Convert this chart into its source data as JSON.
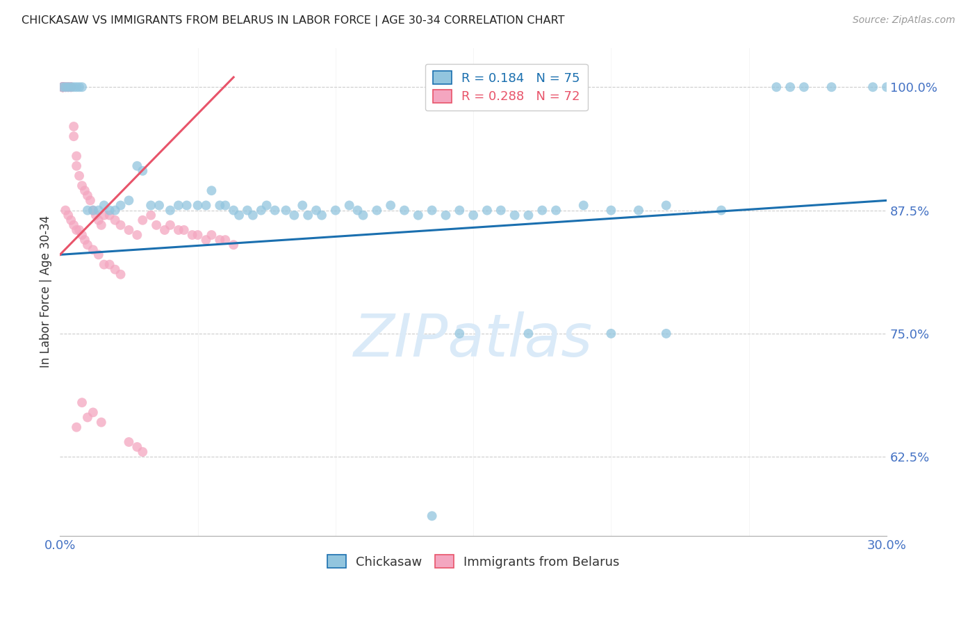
{
  "title": "CHICKASAW VS IMMIGRANTS FROM BELARUS IN LABOR FORCE | AGE 30-34 CORRELATION CHART",
  "source": "Source: ZipAtlas.com",
  "ylabel": "In Labor Force | Age 30-34",
  "xlim": [
    0.0,
    0.3
  ],
  "ylim": [
    0.545,
    1.04
  ],
  "yticks": [
    0.625,
    0.75,
    0.875,
    1.0
  ],
  "ytick_labels": [
    "62.5%",
    "75.0%",
    "87.5%",
    "100.0%"
  ],
  "legend_R1": "R = 0.184",
  "legend_N1": "N = 75",
  "legend_R2": "R = 0.288",
  "legend_N2": "N = 72",
  "blue_color": "#92c5de",
  "pink_color": "#f4a6c0",
  "blue_line_color": "#1a6faf",
  "pink_line_color": "#e8546a",
  "title_color": "#222222",
  "axis_label_color": "#333333",
  "tick_color": "#4472c4",
  "grid_color": "#cccccc",
  "watermark_color": "#daeaf8",
  "blue_x": [
    0.001,
    0.002,
    0.003,
    0.004,
    0.005,
    0.006,
    0.007,
    0.008,
    0.01,
    0.012,
    0.014,
    0.016,
    0.018,
    0.02,
    0.022,
    0.025,
    0.028,
    0.03,
    0.033,
    0.036,
    0.04,
    0.043,
    0.046,
    0.05,
    0.053,
    0.055,
    0.058,
    0.06,
    0.063,
    0.065,
    0.068,
    0.07,
    0.073,
    0.075,
    0.078,
    0.082,
    0.085,
    0.088,
    0.09,
    0.093,
    0.095,
    0.1,
    0.105,
    0.108,
    0.11,
    0.115,
    0.12,
    0.125,
    0.13,
    0.135,
    0.14,
    0.145,
    0.15,
    0.155,
    0.16,
    0.165,
    0.17,
    0.175,
    0.18,
    0.19,
    0.2,
    0.21,
    0.22,
    0.24,
    0.26,
    0.265,
    0.27,
    0.28,
    0.295,
    0.3,
    0.17,
    0.22,
    0.145,
    0.2,
    0.135
  ],
  "blue_y": [
    1.0,
    1.0,
    1.0,
    1.0,
    1.0,
    1.0,
    1.0,
    1.0,
    0.875,
    0.875,
    0.875,
    0.88,
    0.875,
    0.875,
    0.88,
    0.885,
    0.92,
    0.915,
    0.88,
    0.88,
    0.875,
    0.88,
    0.88,
    0.88,
    0.88,
    0.895,
    0.88,
    0.88,
    0.875,
    0.87,
    0.875,
    0.87,
    0.875,
    0.88,
    0.875,
    0.875,
    0.87,
    0.88,
    0.87,
    0.875,
    0.87,
    0.875,
    0.88,
    0.875,
    0.87,
    0.875,
    0.88,
    0.875,
    0.87,
    0.875,
    0.87,
    0.875,
    0.87,
    0.875,
    0.875,
    0.87,
    0.87,
    0.875,
    0.875,
    0.88,
    0.875,
    0.875,
    0.88,
    0.875,
    1.0,
    1.0,
    1.0,
    1.0,
    1.0,
    1.0,
    0.75,
    0.75,
    0.75,
    0.75,
    0.565
  ],
  "pink_x": [
    0.001,
    0.001,
    0.001,
    0.001,
    0.001,
    0.001,
    0.001,
    0.001,
    0.001,
    0.001,
    0.002,
    0.002,
    0.003,
    0.003,
    0.004,
    0.004,
    0.005,
    0.005,
    0.006,
    0.006,
    0.007,
    0.008,
    0.009,
    0.01,
    0.011,
    0.012,
    0.013,
    0.014,
    0.015,
    0.016,
    0.018,
    0.02,
    0.022,
    0.025,
    0.028,
    0.03,
    0.033,
    0.035,
    0.038,
    0.04,
    0.043,
    0.045,
    0.048,
    0.05,
    0.053,
    0.055,
    0.058,
    0.06,
    0.063,
    0.002,
    0.003,
    0.004,
    0.005,
    0.006,
    0.007,
    0.008,
    0.009,
    0.01,
    0.012,
    0.014,
    0.016,
    0.018,
    0.02,
    0.022,
    0.025,
    0.028,
    0.03,
    0.012,
    0.015,
    0.008,
    0.01,
    0.006
  ],
  "pink_y": [
    1.0,
    1.0,
    1.0,
    1.0,
    1.0,
    1.0,
    1.0,
    1.0,
    1.0,
    1.0,
    1.0,
    1.0,
    1.0,
    1.0,
    1.0,
    1.0,
    0.96,
    0.95,
    0.93,
    0.92,
    0.91,
    0.9,
    0.895,
    0.89,
    0.885,
    0.875,
    0.87,
    0.865,
    0.86,
    0.87,
    0.87,
    0.865,
    0.86,
    0.855,
    0.85,
    0.865,
    0.87,
    0.86,
    0.855,
    0.86,
    0.855,
    0.855,
    0.85,
    0.85,
    0.845,
    0.85,
    0.845,
    0.845,
    0.84,
    0.875,
    0.87,
    0.865,
    0.86,
    0.855,
    0.855,
    0.85,
    0.845,
    0.84,
    0.835,
    0.83,
    0.82,
    0.82,
    0.815,
    0.81,
    0.64,
    0.635,
    0.63,
    0.67,
    0.66,
    0.68,
    0.665,
    0.655
  ],
  "blue_trend_x": [
    0.0,
    0.3
  ],
  "blue_trend_y": [
    0.83,
    0.885
  ],
  "pink_trend_x": [
    0.0,
    0.063
  ],
  "pink_trend_y": [
    0.83,
    1.01
  ]
}
